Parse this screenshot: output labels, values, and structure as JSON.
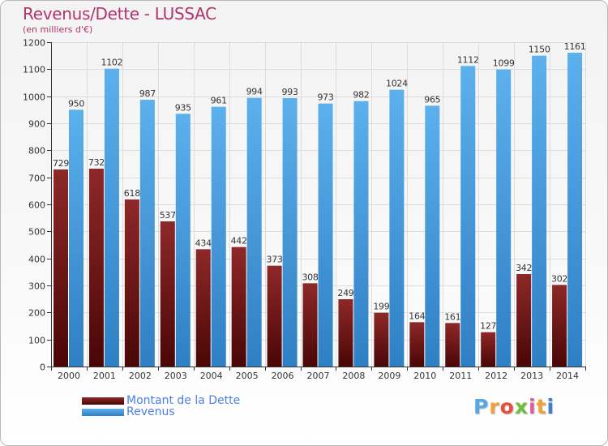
{
  "title": "Revenus/Dette - LUSSAC",
  "subtitle": "(en milliers d'€)",
  "logo": {
    "text": "Proxiti",
    "colors": [
      "#5aa5e6",
      "#f2a03a",
      "#e8503c",
      "#6bbf3b",
      "#e15aa0",
      "#f2a03a",
      "#3b7fd0"
    ]
  },
  "chart_data": {
    "type": "bar",
    "categories": [
      "2000",
      "2001",
      "2002",
      "2003",
      "2004",
      "2005",
      "2006",
      "2007",
      "2008",
      "2009",
      "2010",
      "2011",
      "2012",
      "2013",
      "2014"
    ],
    "series": [
      {
        "name": "Montant de la Dette",
        "color": "#7a1818",
        "values": [
          729,
          732,
          618,
          537,
          434,
          442,
          373,
          308,
          249,
          199,
          164,
          161,
          127,
          342,
          302
        ],
        "labels": [
          "729",
          "732",
          "618",
          "537",
          "434",
          "442",
          "373",
          "308",
          "249",
          "199",
          "164",
          "161",
          "127",
          "342",
          "302"
        ]
      },
      {
        "name": "Revenus",
        "color": "#4fa3e3",
        "values": [
          950,
          1102,
          987,
          935,
          961,
          994,
          993,
          973,
          982,
          1024,
          965,
          1112,
          1099,
          1150,
          1161
        ],
        "labels": [
          "950",
          "1102",
          "987",
          "935",
          "961",
          "994",
          "993",
          "973",
          "982",
          "1024",
          "965",
          "1112",
          "1099",
          "1150",
          "1161"
        ]
      }
    ],
    "ylim": [
      0,
      1200
    ],
    "yticks": [
      0,
      100,
      200,
      300,
      400,
      500,
      600,
      700,
      800,
      900,
      1000,
      1100,
      1200
    ],
    "grid": true,
    "legend_position": "bottom-left"
  }
}
